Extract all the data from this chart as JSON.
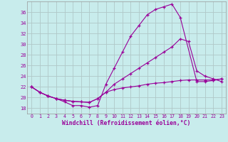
{
  "xlabel": "Windchill (Refroidissement éolien,°C)",
  "bg_color": "#c8ecec",
  "line_color": "#990099",
  "grid_color": "#b0c8c8",
  "xlim": [
    -0.5,
    23.5
  ],
  "ylim": [
    17,
    38
  ],
  "yticks": [
    18,
    20,
    22,
    24,
    26,
    28,
    30,
    32,
    34,
    36
  ],
  "xticks": [
    0,
    1,
    2,
    3,
    4,
    5,
    6,
    7,
    8,
    9,
    10,
    11,
    12,
    13,
    14,
    15,
    16,
    17,
    18,
    19,
    20,
    21,
    22,
    23
  ],
  "line1_x": [
    0,
    1,
    2,
    3,
    4,
    5,
    6,
    7,
    8,
    9,
    10,
    11,
    12,
    13,
    14,
    15,
    16,
    17,
    18,
    20,
    21,
    22,
    23
  ],
  "line1_y": [
    22,
    21,
    20.3,
    19.8,
    19.2,
    18.5,
    18.5,
    18.2,
    18.5,
    22.5,
    25.5,
    28.5,
    31.5,
    33.5,
    35.5,
    36.5,
    37.0,
    37.5,
    35.0,
    23.0,
    23.0,
    23.2,
    23.5
  ],
  "line2_x": [
    0,
    1,
    2,
    3,
    4,
    5,
    6,
    7,
    8,
    9,
    10,
    11,
    12,
    13,
    14,
    15,
    16,
    17,
    18,
    19,
    20,
    21,
    22,
    23
  ],
  "line2_y": [
    22,
    21,
    20.3,
    19.8,
    19.5,
    19.3,
    19.2,
    19.1,
    19.8,
    21.0,
    22.5,
    23.5,
    24.5,
    25.5,
    26.5,
    27.5,
    28.5,
    29.5,
    31.0,
    30.5,
    25.0,
    24.0,
    23.5,
    23.0
  ],
  "line3_x": [
    0,
    1,
    2,
    3,
    4,
    5,
    6,
    7,
    8,
    9,
    10,
    11,
    12,
    13,
    14,
    15,
    16,
    17,
    18,
    19,
    20,
    21,
    22,
    23
  ],
  "line3_y": [
    22,
    21,
    20.3,
    19.8,
    19.5,
    19.3,
    19.2,
    19.1,
    19.8,
    21.0,
    21.5,
    21.8,
    22.0,
    22.2,
    22.5,
    22.7,
    22.8,
    23.0,
    23.2,
    23.3,
    23.3,
    23.3,
    23.3,
    23.5
  ]
}
